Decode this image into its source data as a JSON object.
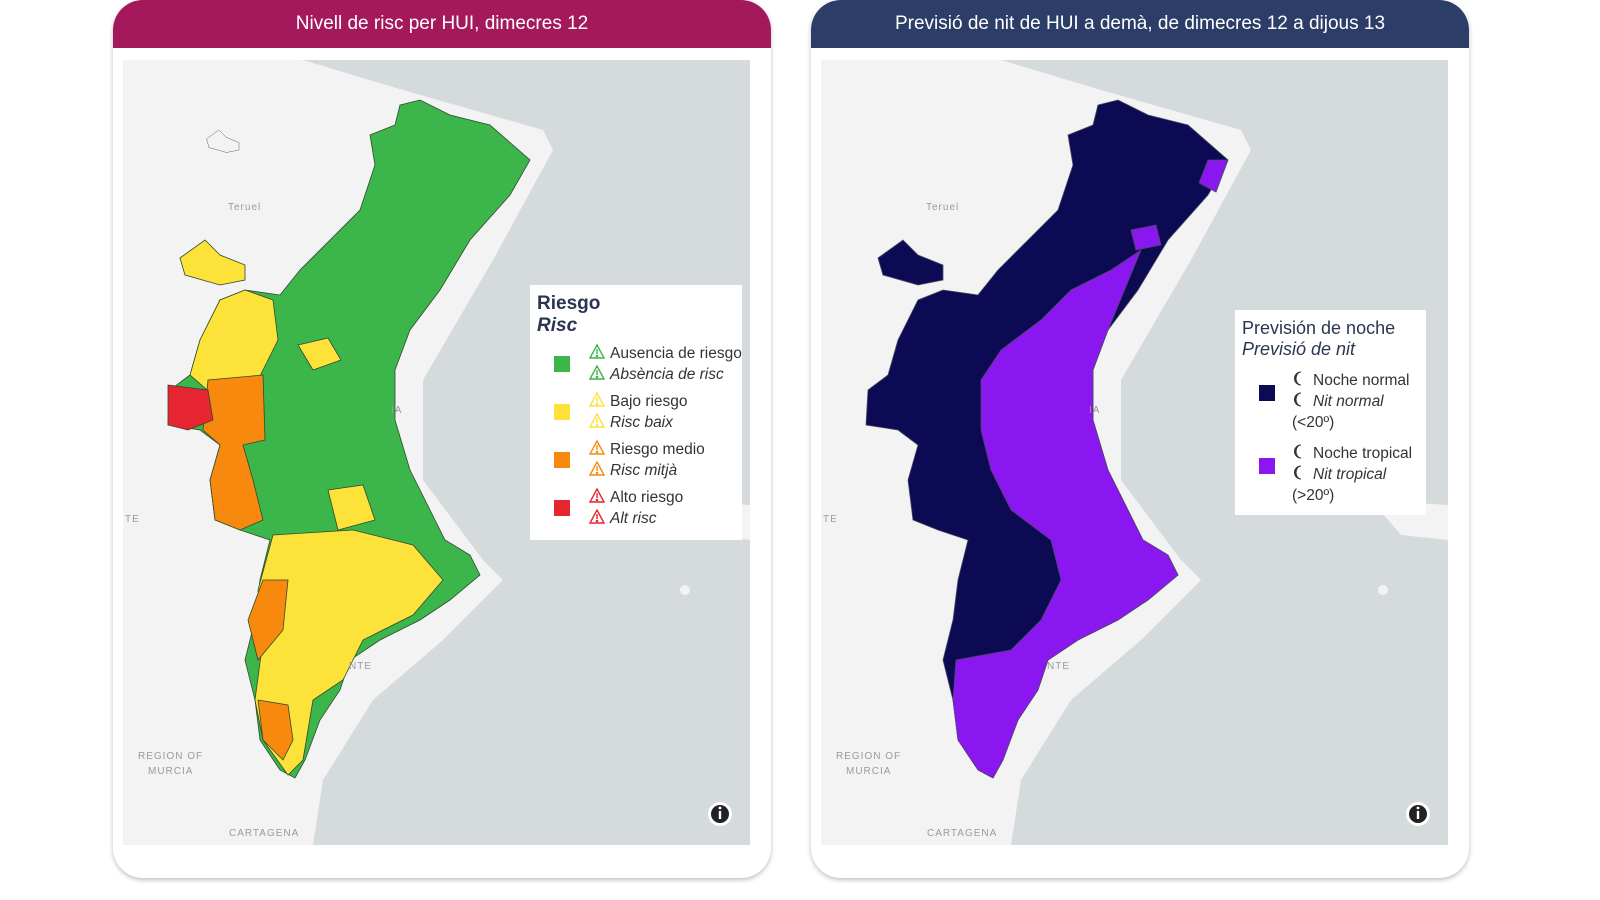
{
  "panels": [
    {
      "title": "Nivell de risc per HUI, dimecres 12",
      "header_color": "#a3195b",
      "legend": {
        "title": "Riesgo",
        "subtitle": "Risc",
        "items": [
          {
            "label": "Ausencia de riesgo",
            "label_alt": "Absència de risc",
            "color": "#3cb54a"
          },
          {
            "label": "Bajo riesgo",
            "label_alt": "Risc baix",
            "color": "#fde23a"
          },
          {
            "label": "Riesgo medio",
            "label_alt": "Risc mitjà",
            "color": "#f7890f"
          },
          {
            "label": "Alto riesgo",
            "label_alt": "Alt risc",
            "color": "#e5252f"
          }
        ]
      },
      "map_labels": [
        "Teruel",
        "REGION OF",
        "MURCIA",
        "CARTAGENA",
        "TE",
        "IA",
        "NTE"
      ]
    },
    {
      "title": "Previsió de nit de HUI a demà, de dimecres 12 a dijous 13",
      "header_color": "#2c3e67",
      "legend": {
        "title": "Previsión de noche",
        "subtitle": "Previsió de nit",
        "items": [
          {
            "label": "Noche normal",
            "label_alt": "Nit normal",
            "note": "(<20º)",
            "color": "#0c0a52"
          },
          {
            "label": "Noche tropical",
            "label_alt": "Nit tropical",
            "note": "(>20º)",
            "color": "#8a16f0"
          }
        ]
      },
      "map_labels": [
        "Teruel",
        "REGION OF",
        "MURCIA",
        "CARTAGENA",
        "TE",
        "IA",
        "NTE"
      ]
    }
  ]
}
